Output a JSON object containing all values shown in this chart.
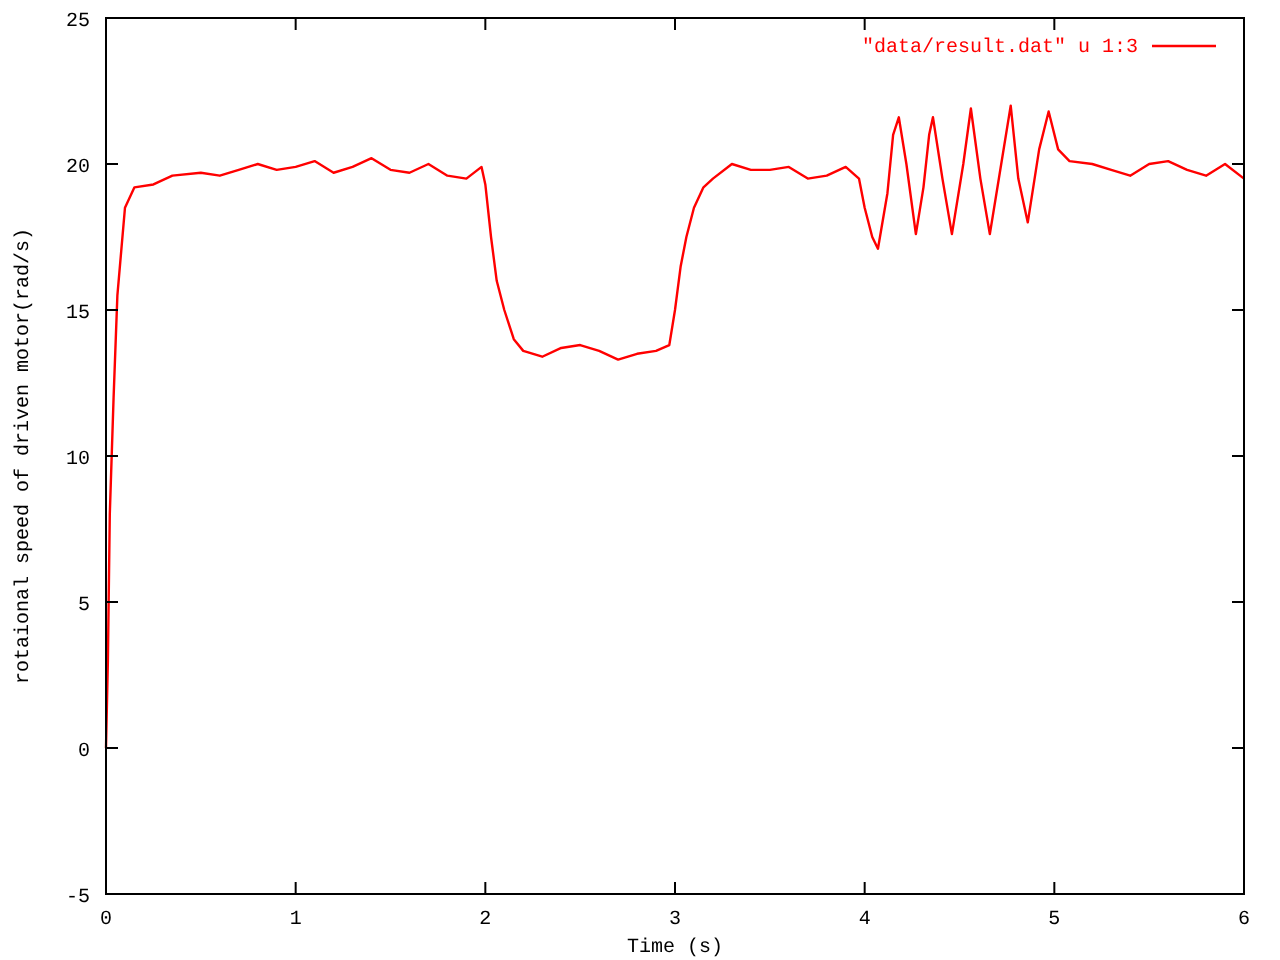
{
  "chart_data": {
    "type": "line",
    "xlabel": "Time (s)",
    "ylabel": "rotaional speed of driven motor(rad/s)",
    "xlim": [
      0,
      6
    ],
    "ylim": [
      -5,
      25
    ],
    "xticks": [
      0,
      1,
      2,
      3,
      4,
      5,
      6
    ],
    "yticks": [
      -5,
      0,
      5,
      10,
      15,
      20,
      25
    ],
    "grid": false,
    "legend": "top right",
    "marker": "none",
    "line_style": "solid",
    "series": [
      {
        "name": "\"data/result.dat\" u 1:3",
        "color": "#ff0000",
        "x": [
          0,
          0.01,
          0.02,
          0.04,
          0.06,
          0.08,
          0.1,
          0.15,
          0.25,
          0.35,
          0.5,
          0.6,
          0.7,
          0.8,
          0.9,
          1.0,
          1.1,
          1.2,
          1.3,
          1.4,
          1.5,
          1.6,
          1.7,
          1.8,
          1.9,
          1.98,
          2.0,
          2.03,
          2.06,
          2.1,
          2.15,
          2.2,
          2.3,
          2.4,
          2.5,
          2.6,
          2.7,
          2.8,
          2.9,
          2.97,
          3.0,
          3.03,
          3.06,
          3.1,
          3.15,
          3.2,
          3.3,
          3.4,
          3.5,
          3.6,
          3.7,
          3.8,
          3.9,
          3.97,
          4.0,
          4.04,
          4.07,
          4.12,
          4.15,
          4.18,
          4.22,
          4.27,
          4.31,
          4.34,
          4.36,
          4.41,
          4.46,
          4.52,
          4.56,
          4.61,
          4.66,
          4.72,
          4.77,
          4.81,
          4.86,
          4.92,
          4.97,
          5.02,
          5.08,
          5.2,
          5.3,
          5.4,
          5.5,
          5.6,
          5.7,
          5.8,
          5.9,
          6.0
        ],
        "values": [
          0,
          3,
          8,
          12,
          15.5,
          17,
          18.5,
          19.2,
          19.3,
          19.6,
          19.7,
          19.6,
          19.8,
          20,
          19.8,
          19.9,
          20.1,
          19.7,
          19.9,
          20.2,
          19.8,
          19.7,
          20,
          19.6,
          19.5,
          19.9,
          19.3,
          17.5,
          16,
          15,
          14,
          13.6,
          13.4,
          13.7,
          13.8,
          13.6,
          13.3,
          13.5,
          13.6,
          13.8,
          15,
          16.5,
          17.5,
          18.5,
          19.2,
          19.5,
          20,
          19.8,
          19.8,
          19.9,
          19.5,
          19.6,
          19.9,
          19.5,
          18.5,
          17.5,
          17.1,
          19,
          21,
          21.6,
          20,
          17.6,
          19.2,
          21,
          21.6,
          19.5,
          17.6,
          20,
          21.9,
          19.5,
          17.6,
          20,
          22,
          19.5,
          18,
          20.5,
          21.8,
          20.5,
          20.1,
          20,
          19.8,
          19.6,
          20,
          20.1,
          19.8,
          19.6,
          20,
          19.5
        ]
      }
    ]
  }
}
